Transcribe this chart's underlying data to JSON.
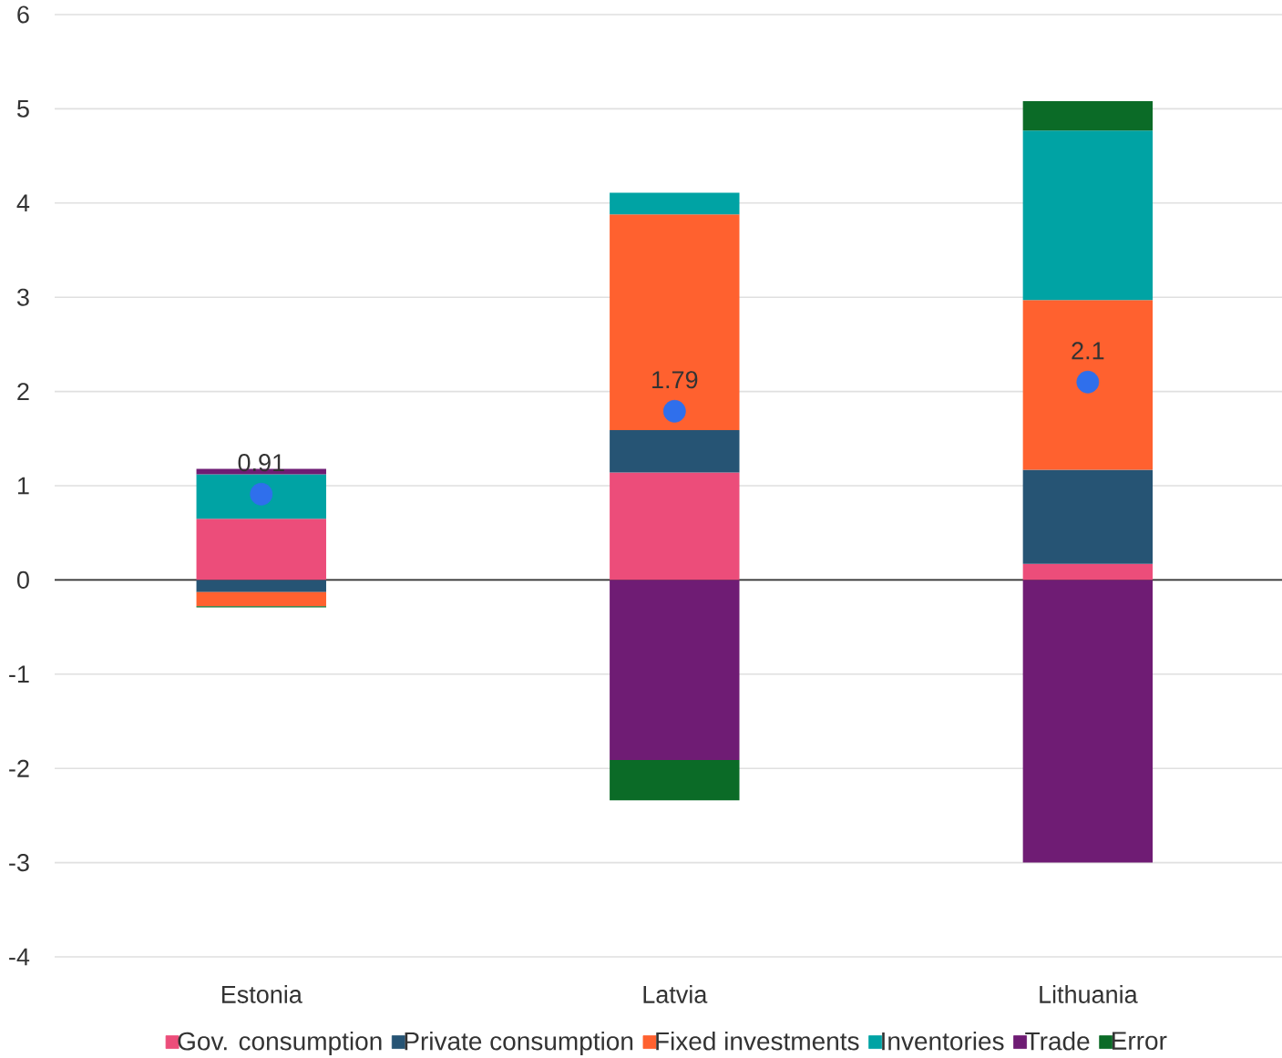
{
  "chart_data": {
    "type": "bar",
    "stacked": true,
    "categories": [
      "Estonia",
      "Latvia",
      "Lithuania"
    ],
    "series": [
      {
        "name": "Gov. consumption",
        "color": "#ec4d7a",
        "values": [
          0.65,
          1.14,
          0.17
        ]
      },
      {
        "name": "Private consumption",
        "color": "#265474",
        "values": [
          -0.13,
          0.45,
          1.0
        ]
      },
      {
        "name": "Fixed investments",
        "color": "#ff612f",
        "values": [
          -0.15,
          2.29,
          1.8
        ]
      },
      {
        "name": "Inventories",
        "color": "#00a3a4",
        "values": [
          0.47,
          0.23,
          1.8
        ]
      },
      {
        "name": "Trade",
        "color": "#6f1c74",
        "values": [
          0.06,
          -1.91,
          -3.0
        ]
      },
      {
        "name": "Error",
        "color": "#0b6b27",
        "values": [
          -0.01,
          -0.43,
          0.31
        ]
      },
      {
        "type": "scatter",
        "color": "#2f6fec",
        "marker": "circle",
        "values": [
          0.91,
          1.79,
          2.1
        ],
        "value_labels": [
          "0.91",
          "1.79",
          "2.1"
        ]
      }
    ],
    "ylim": [
      -4,
      6
    ],
    "yticks": [
      -4,
      -3,
      -2,
      -1,
      0,
      1,
      2,
      3,
      4,
      5,
      6
    ],
    "grid": "y",
    "legend": "bottom",
    "ref_lines": [
      {
        "axis": "y",
        "value": 0,
        "color": "#333333"
      }
    ]
  }
}
